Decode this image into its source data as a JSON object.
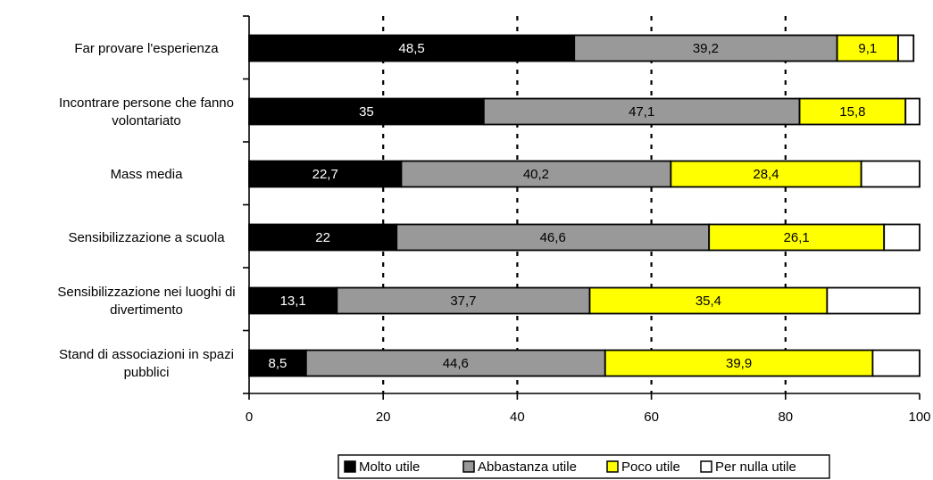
{
  "chart_data": {
    "type": "bar",
    "orientation": "horizontal",
    "stacked": true,
    "categories": [
      [
        "Far provare l'esperienza"
      ],
      [
        "Incontrare persone che fanno",
        "volontariato"
      ],
      [
        "Mass media"
      ],
      [
        "Sensibilizzazione a scuola"
      ],
      [
        "Sensibilizzazione nei luoghi di",
        "divertimento"
      ],
      [
        "Stand di associazioni in spazi",
        "pubblici"
      ]
    ],
    "series": [
      {
        "name": "Molto utile",
        "color": "#000000",
        "label_color": "#ffffff",
        "values": [
          48.5,
          35,
          22.7,
          22,
          13.1,
          8.5
        ],
        "labels": [
          "48,5",
          "35",
          "22,7",
          "22",
          "13,1",
          "8,5"
        ]
      },
      {
        "name": "Abbastanza utile",
        "color": "#999999",
        "label_color": "#000000",
        "values": [
          39.2,
          47.1,
          40.2,
          46.6,
          37.7,
          44.6
        ],
        "labels": [
          "39,2",
          "47,1",
          "40,2",
          "46,6",
          "37,7",
          "44,6"
        ]
      },
      {
        "name": "Poco utile",
        "color": "#ffff00",
        "label_color": "#000000",
        "values": [
          9.1,
          15.8,
          28.4,
          26.1,
          35.4,
          39.9
        ],
        "labels": [
          "9,1",
          "15,8",
          "28,4",
          "26,1",
          "35,4",
          "39,9"
        ]
      },
      {
        "name": "Per nulla utile",
        "color": "#ffffff",
        "label_color": "#000000",
        "values": [
          2.3,
          2.1,
          8.7,
          5.3,
          13.8,
          7.0
        ],
        "labels": [
          "",
          "",
          "",
          "",
          "",
          ""
        ]
      }
    ],
    "xlim": [
      0,
      100
    ],
    "xticks": [
      0,
      20,
      40,
      60,
      80,
      100
    ],
    "gridlines": "dotted vertical",
    "legend_position": "bottom"
  }
}
